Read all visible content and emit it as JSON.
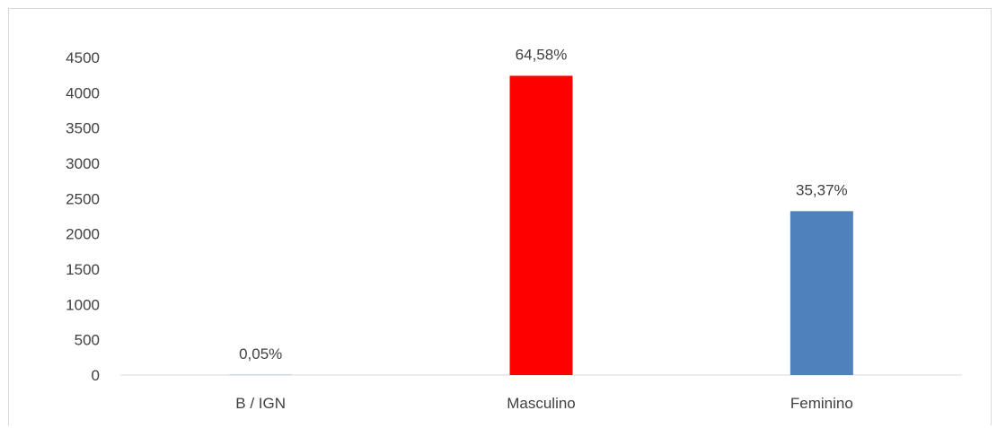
{
  "chart_data": {
    "type": "bar",
    "categories": [
      "B / IGN",
      "Masculino",
      "Feminino"
    ],
    "values": [
      3,
      4240,
      2322
    ],
    "data_labels": [
      "0,05%",
      "64,58%",
      "35,37%"
    ],
    "bar_colors": [
      "#4f81bd",
      "#ff0000",
      "#4f81bd"
    ],
    "title": "",
    "xlabel": "",
    "ylabel": "",
    "ylim": [
      0,
      4500
    ],
    "y_ticks": [
      0,
      500,
      1000,
      1500,
      2000,
      2500,
      3000,
      3500,
      4000,
      4500
    ],
    "grid": false,
    "legend": "none"
  }
}
